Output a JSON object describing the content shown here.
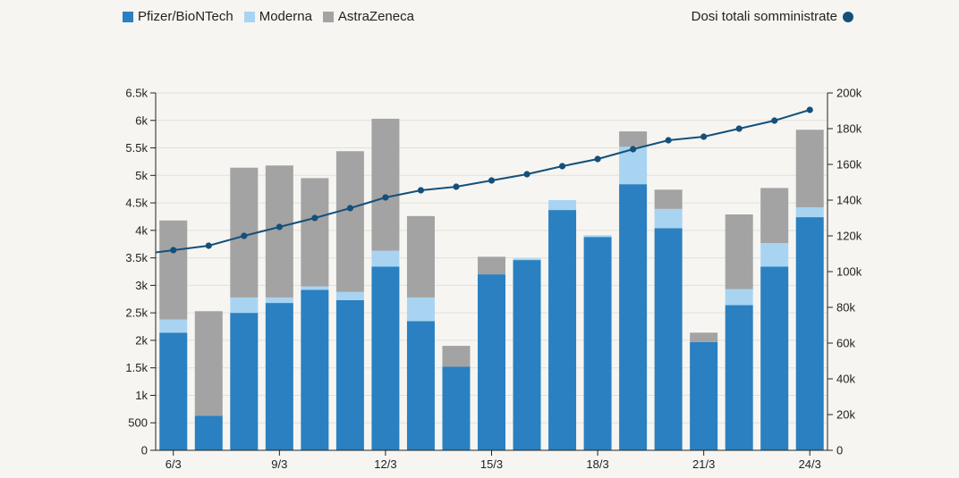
{
  "chart_data": {
    "type": "bar",
    "stacked": true,
    "categories": [
      "6/3",
      "7/3",
      "8/3",
      "9/3",
      "10/3",
      "11/3",
      "12/3",
      "13/3",
      "14/3",
      "15/3",
      "16/3",
      "17/3",
      "18/3",
      "19/3",
      "20/3",
      "21/3",
      "22/3",
      "23/3",
      "24/3"
    ],
    "x_tick_labels": [
      "6/3",
      "9/3",
      "12/3",
      "15/3",
      "18/3",
      "21/3",
      "24/3"
    ],
    "series": [
      {
        "name": "Pfizer/BioNTech",
        "color": "#2a80c0",
        "values": [
          2140,
          630,
          2500,
          2680,
          2920,
          2730,
          3340,
          2350,
          1520,
          3200,
          3460,
          4370,
          3880,
          4840,
          4040,
          1970,
          2640,
          3340,
          4240
        ]
      },
      {
        "name": "Moderna",
        "color": "#a8d4f2",
        "values": [
          240,
          0,
          280,
          100,
          60,
          150,
          290,
          430,
          0,
          0,
          30,
          180,
          30,
          680,
          350,
          0,
          290,
          430,
          180
        ]
      },
      {
        "name": "AstraZeneca",
        "color": "#a3a3a3",
        "values": [
          1800,
          1900,
          2360,
          2400,
          1970,
          2560,
          2400,
          1480,
          380,
          320,
          0,
          0,
          0,
          280,
          350,
          170,
          1360,
          1000,
          1410
        ]
      }
    ],
    "line_series": {
      "name": "Dosi totali somministrate",
      "color": "#14507a",
      "axis": "right",
      "values": [
        112000,
        114500,
        120000,
        125000,
        130000,
        135500,
        141500,
        145500,
        147500,
        151000,
        154500,
        159000,
        163000,
        168500,
        173500,
        175500,
        180000,
        184500,
        190500
      ]
    },
    "ylim_left": [
      0,
      6500
    ],
    "ylim_right": [
      0,
      200000
    ],
    "y_left_ticks": [
      {
        "v": 0,
        "label": "0"
      },
      {
        "v": 500,
        "label": "500"
      },
      {
        "v": 1000,
        "label": "1k"
      },
      {
        "v": 1500,
        "label": "1.5k"
      },
      {
        "v": 2000,
        "label": "2k"
      },
      {
        "v": 2500,
        "label": "2.5k"
      },
      {
        "v": 3000,
        "label": "3k"
      },
      {
        "v": 3500,
        "label": "3.5k"
      },
      {
        "v": 4000,
        "label": "4k"
      },
      {
        "v": 4500,
        "label": "4.5k"
      },
      {
        "v": 5000,
        "label": "5k"
      },
      {
        "v": 5500,
        "label": "5.5k"
      },
      {
        "v": 6000,
        "label": "6k"
      },
      {
        "v": 6500,
        "label": "6.5k"
      }
    ],
    "y_right_ticks": [
      {
        "v": 0,
        "label": "0"
      },
      {
        "v": 20000,
        "label": "20k"
      },
      {
        "v": 40000,
        "label": "40k"
      },
      {
        "v": 60000,
        "label": "60k"
      },
      {
        "v": 80000,
        "label": "80k"
      },
      {
        "v": 100000,
        "label": "100k"
      },
      {
        "v": 120000,
        "label": "120k"
      },
      {
        "v": 140000,
        "label": "140k"
      },
      {
        "v": 160000,
        "label": "160k"
      },
      {
        "v": 180000,
        "label": "180k"
      },
      {
        "v": 200000,
        "label": "200k"
      }
    ],
    "grid": true,
    "legend_position": "top"
  }
}
